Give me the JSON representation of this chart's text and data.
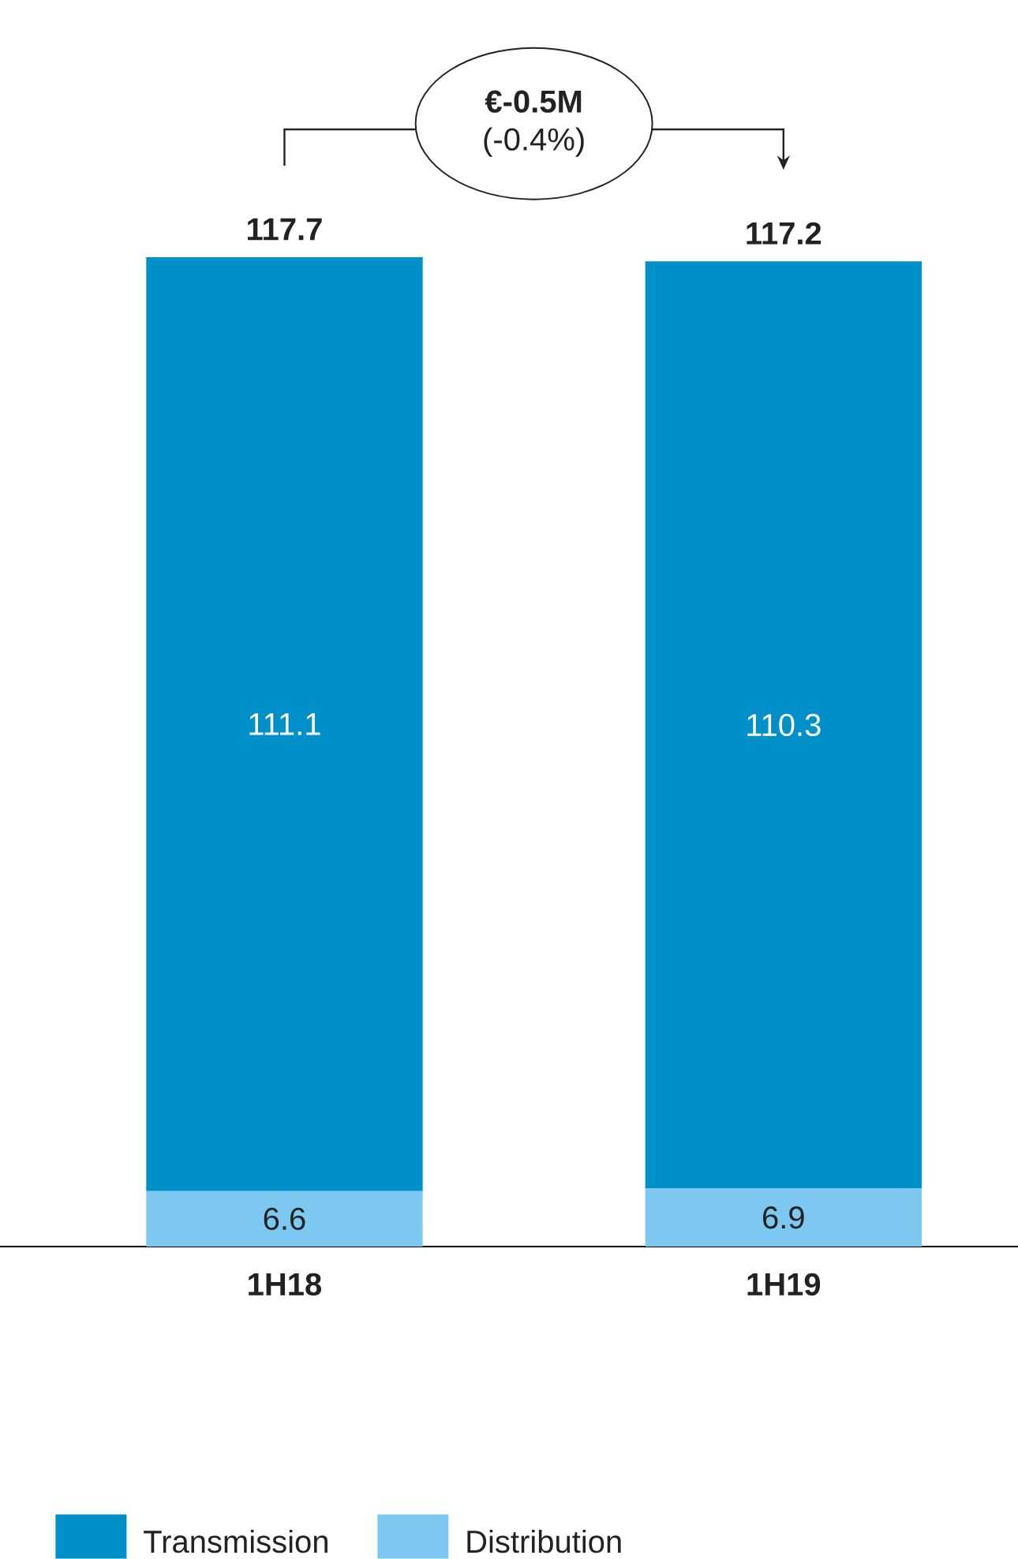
{
  "chart_data": {
    "type": "bar",
    "stacked": true,
    "categories": [
      "1H18",
      "1H19"
    ],
    "series": [
      {
        "name": "Distribution",
        "color": "#7cc8f0",
        "values": [
          6.6,
          6.9
        ]
      },
      {
        "name": "Transmission",
        "color": "#0090c9",
        "values": [
          111.1,
          110.3
        ]
      }
    ],
    "totals": [
      "117.7",
      "117.2"
    ],
    "data_labels": true,
    "legend": "bottom",
    "annotations": [
      "€-0.5M",
      "(-0.4%)"
    ]
  }
}
